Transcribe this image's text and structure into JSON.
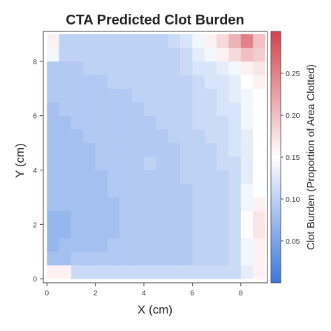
{
  "chart_data": {
    "type": "heatmap",
    "title": "CTA Predicted Clot Burden",
    "xlabel": "X (cm)",
    "ylabel": "Y (cm)",
    "colorbar_label": "Clot Burden (Proportion of Area Clotted)",
    "xlim": [
      -0.15,
      9.1
    ],
    "ylim": [
      -0.15,
      9.1
    ],
    "xticks": [
      0,
      2,
      4,
      6,
      8
    ],
    "yticks": [
      0,
      2,
      4,
      6,
      8
    ],
    "colorbar_range": [
      0.0,
      0.3
    ],
    "colorbar_ticks": [
      0.05,
      0.1,
      0.15,
      0.2,
      0.25
    ],
    "colorbar_tick_labels": [
      "0.05",
      "0.10",
      "0.15",
      "0.20",
      "0.25"
    ],
    "colormap": {
      "low": "#3b78e0",
      "mid": "#ffffff",
      "high": "#d4424b"
    },
    "grid": false,
    "cell_size_cm": 0.5,
    "x_centers": [
      0.25,
      0.75,
      1.25,
      1.75,
      2.25,
      2.75,
      3.25,
      3.75,
      4.25,
      4.75,
      5.25,
      5.75,
      6.25,
      6.75,
      7.25,
      7.75,
      8.25,
      8.75
    ],
    "y_centers": [
      0.25,
      0.75,
      1.25,
      1.75,
      2.25,
      2.75,
      3.25,
      3.75,
      4.25,
      4.75,
      5.25,
      5.75,
      6.25,
      6.75,
      7.25,
      7.75,
      8.25,
      8.75
    ],
    "z_rows_bottom_to_top": [
      [
        0.16,
        0.16,
        0.11,
        0.11,
        0.11,
        0.11,
        0.11,
        0.11,
        0.11,
        0.11,
        0.11,
        0.11,
        0.11,
        0.11,
        0.11,
        0.11,
        0.13,
        0.16
      ],
      [
        0.08,
        0.08,
        0.09,
        0.09,
        0.09,
        0.09,
        0.09,
        0.09,
        0.09,
        0.09,
        0.09,
        0.09,
        0.1,
        0.1,
        0.1,
        0.11,
        0.14,
        0.16
      ],
      [
        0.07,
        0.08,
        0.08,
        0.08,
        0.08,
        0.09,
        0.09,
        0.09,
        0.09,
        0.09,
        0.09,
        0.09,
        0.1,
        0.1,
        0.1,
        0.11,
        0.14,
        0.16
      ],
      [
        0.07,
        0.07,
        0.08,
        0.08,
        0.08,
        0.08,
        0.09,
        0.09,
        0.09,
        0.09,
        0.09,
        0.09,
        0.1,
        0.1,
        0.1,
        0.11,
        0.15,
        0.17
      ],
      [
        0.07,
        0.07,
        0.08,
        0.08,
        0.08,
        0.08,
        0.09,
        0.09,
        0.09,
        0.09,
        0.09,
        0.09,
        0.1,
        0.1,
        0.1,
        0.11,
        0.15,
        0.17
      ],
      [
        0.08,
        0.08,
        0.08,
        0.08,
        0.08,
        0.08,
        0.09,
        0.09,
        0.09,
        0.09,
        0.09,
        0.09,
        0.1,
        0.1,
        0.1,
        0.11,
        0.14,
        0.16
      ],
      [
        0.08,
        0.08,
        0.08,
        0.08,
        0.08,
        0.09,
        0.09,
        0.09,
        0.09,
        0.09,
        0.09,
        0.09,
        0.1,
        0.1,
        0.1,
        0.11,
        0.14,
        0.15
      ],
      [
        0.08,
        0.08,
        0.08,
        0.08,
        0.08,
        0.09,
        0.09,
        0.09,
        0.09,
        0.09,
        0.09,
        0.1,
        0.1,
        0.1,
        0.1,
        0.11,
        0.13,
        0.15
      ],
      [
        0.08,
        0.08,
        0.08,
        0.08,
        0.09,
        0.09,
        0.09,
        0.09,
        0.1,
        0.09,
        0.09,
        0.1,
        0.1,
        0.1,
        0.11,
        0.11,
        0.13,
        0.15
      ],
      [
        0.08,
        0.08,
        0.08,
        0.08,
        0.09,
        0.09,
        0.09,
        0.09,
        0.09,
        0.09,
        0.09,
        0.1,
        0.1,
        0.1,
        0.11,
        0.12,
        0.13,
        0.15
      ],
      [
        0.08,
        0.08,
        0.08,
        0.09,
        0.09,
        0.09,
        0.09,
        0.09,
        0.09,
        0.09,
        0.1,
        0.1,
        0.1,
        0.11,
        0.11,
        0.12,
        0.13,
        0.15
      ],
      [
        0.08,
        0.08,
        0.09,
        0.09,
        0.09,
        0.09,
        0.09,
        0.09,
        0.09,
        0.1,
        0.1,
        0.1,
        0.11,
        0.11,
        0.11,
        0.12,
        0.14,
        0.15
      ],
      [
        0.08,
        0.09,
        0.09,
        0.09,
        0.09,
        0.09,
        0.09,
        0.09,
        0.1,
        0.1,
        0.1,
        0.1,
        0.11,
        0.11,
        0.12,
        0.12,
        0.14,
        0.15
      ],
      [
        0.09,
        0.09,
        0.09,
        0.09,
        0.09,
        0.09,
        0.09,
        0.1,
        0.1,
        0.1,
        0.1,
        0.1,
        0.11,
        0.11,
        0.12,
        0.13,
        0.14,
        0.15
      ],
      [
        0.09,
        0.09,
        0.09,
        0.09,
        0.09,
        0.1,
        0.1,
        0.1,
        0.1,
        0.1,
        0.1,
        0.1,
        0.11,
        0.12,
        0.12,
        0.13,
        0.15,
        0.16
      ],
      [
        0.09,
        0.09,
        0.09,
        0.1,
        0.1,
        0.1,
        0.1,
        0.1,
        0.1,
        0.1,
        0.1,
        0.11,
        0.12,
        0.12,
        0.13,
        0.14,
        0.16,
        0.17
      ],
      [
        0.14,
        0.1,
        0.1,
        0.1,
        0.1,
        0.1,
        0.1,
        0.1,
        0.1,
        0.1,
        0.1,
        0.11,
        0.13,
        0.14,
        0.16,
        0.18,
        0.2,
        0.19
      ],
      [
        0.16,
        0.1,
        0.1,
        0.1,
        0.1,
        0.1,
        0.1,
        0.1,
        0.1,
        0.1,
        0.11,
        0.12,
        0.14,
        0.16,
        0.18,
        0.21,
        0.25,
        0.2
      ]
    ]
  }
}
